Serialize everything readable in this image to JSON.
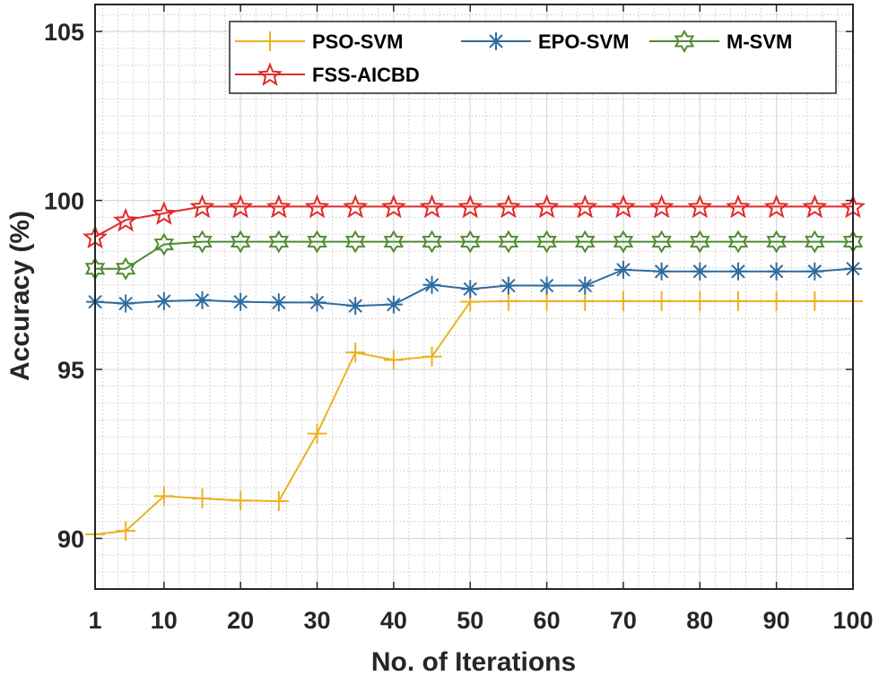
{
  "chart_data": {
    "type": "line",
    "title": "",
    "xlabel": "No. of Iterations",
    "ylabel": "Accuracy (%)",
    "xlim": [
      1,
      100
    ],
    "ylim": [
      88.5,
      105.8
    ],
    "x": [
      1,
      5,
      10,
      15,
      20,
      25,
      30,
      35,
      40,
      45,
      50,
      55,
      60,
      65,
      70,
      75,
      80,
      85,
      90,
      95,
      100
    ],
    "xticks": [
      1,
      10,
      20,
      30,
      40,
      50,
      60,
      70,
      80,
      90,
      100
    ],
    "xtick_labels": [
      "1",
      "10",
      "20",
      "30",
      "40",
      "50",
      "60",
      "70",
      "80",
      "90",
      "100"
    ],
    "yticks": [
      90,
      95,
      100,
      105
    ],
    "ytick_labels": [
      "90",
      "95",
      "100",
      "105"
    ],
    "grid": true,
    "minor_grid": true,
    "legend_position": "top",
    "series": [
      {
        "name": "PSO-SVM",
        "color": "#EDB120",
        "marker": "plus",
        "values": [
          90.12,
          90.22,
          91.25,
          91.18,
          91.12,
          91.1,
          93.1,
          95.5,
          95.28,
          95.38,
          97.0,
          97.02,
          97.02,
          97.02,
          97.02,
          97.02,
          97.02,
          97.02,
          97.02,
          97.02,
          97.02
        ]
      },
      {
        "name": "EPO-SVM",
        "color": "#2F6C9E",
        "marker": "asterisk",
        "values": [
          97.0,
          96.95,
          97.02,
          97.05,
          97.0,
          96.98,
          96.98,
          96.88,
          96.92,
          97.5,
          97.38,
          97.48,
          97.48,
          97.48,
          97.95,
          97.9,
          97.9,
          97.9,
          97.9,
          97.9,
          97.98
        ]
      },
      {
        "name": "M-SVM",
        "color": "#4E8A2E",
        "marker": "hexagram",
        "values": [
          97.98,
          97.98,
          98.7,
          98.78,
          98.78,
          98.78,
          98.78,
          98.78,
          98.78,
          98.78,
          98.78,
          98.78,
          98.78,
          98.78,
          98.78,
          98.78,
          98.78,
          98.78,
          98.78,
          98.78,
          98.78
        ]
      },
      {
        "name": "FSS-AICBD",
        "color": "#E02A2A",
        "marker": "pentagram",
        "values": [
          98.92,
          99.42,
          99.62,
          99.82,
          99.82,
          99.82,
          99.82,
          99.82,
          99.82,
          99.82,
          99.82,
          99.82,
          99.82,
          99.82,
          99.82,
          99.82,
          99.82,
          99.82,
          99.82,
          99.82,
          99.82
        ]
      }
    ]
  }
}
